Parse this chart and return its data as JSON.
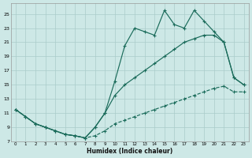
{
  "background_color": "#cde8e6",
  "grid_color": "#aaccca",
  "line_color": "#1a6b5a",
  "xlabel": "Humidex (Indice chaleur)",
  "xlim": [
    -0.5,
    23.5
  ],
  "ylim": [
    7,
    26.5
  ],
  "yticks": [
    7,
    9,
    11,
    13,
    15,
    17,
    19,
    21,
    23,
    25
  ],
  "xticks": [
    0,
    1,
    2,
    3,
    4,
    5,
    6,
    7,
    8,
    9,
    10,
    11,
    12,
    13,
    14,
    15,
    16,
    17,
    18,
    19,
    20,
    21,
    22,
    23
  ],
  "line_dashed_x": [
    0,
    1,
    2,
    3,
    4,
    5,
    6,
    7,
    8,
    9,
    10,
    11,
    12,
    13,
    14,
    15,
    16,
    17,
    18,
    19,
    20,
    21,
    22,
    23
  ],
  "line_dashed_y": [
    11.5,
    10.5,
    9.5,
    9.0,
    8.5,
    8.0,
    7.8,
    7.5,
    7.8,
    8.5,
    9.5,
    10.0,
    10.5,
    11.0,
    11.5,
    12.0,
    12.5,
    13.0,
    13.5,
    14.0,
    14.5,
    14.8,
    14.0,
    14.0
  ],
  "line_solid1_x": [
    0,
    1,
    2,
    3,
    4,
    5,
    6,
    7,
    8,
    9,
    10,
    11,
    12,
    13,
    14,
    15,
    16,
    17,
    18,
    19,
    20,
    21,
    22,
    23
  ],
  "line_solid1_y": [
    11.5,
    10.5,
    9.5,
    9.0,
    8.5,
    8.0,
    7.8,
    7.5,
    9.0,
    11.0,
    13.5,
    15.0,
    16.0,
    17.0,
    18.0,
    19.0,
    20.0,
    21.0,
    21.5,
    22.0,
    22.0,
    21.0,
    16.0,
    15.0
  ],
  "line_solid2_x": [
    0,
    1,
    2,
    3,
    4,
    5,
    6,
    7,
    8,
    9,
    10,
    11,
    12,
    13,
    14,
    15,
    16,
    17,
    18,
    19,
    20,
    21,
    22,
    23
  ],
  "line_solid2_y": [
    11.5,
    10.5,
    9.5,
    9.0,
    8.5,
    8.0,
    7.8,
    7.5,
    9.0,
    11.0,
    15.5,
    20.5,
    23.0,
    22.5,
    22.0,
    25.5,
    23.5,
    23.0,
    25.5,
    24.0,
    22.5,
    21.0,
    16.0,
    15.0
  ]
}
